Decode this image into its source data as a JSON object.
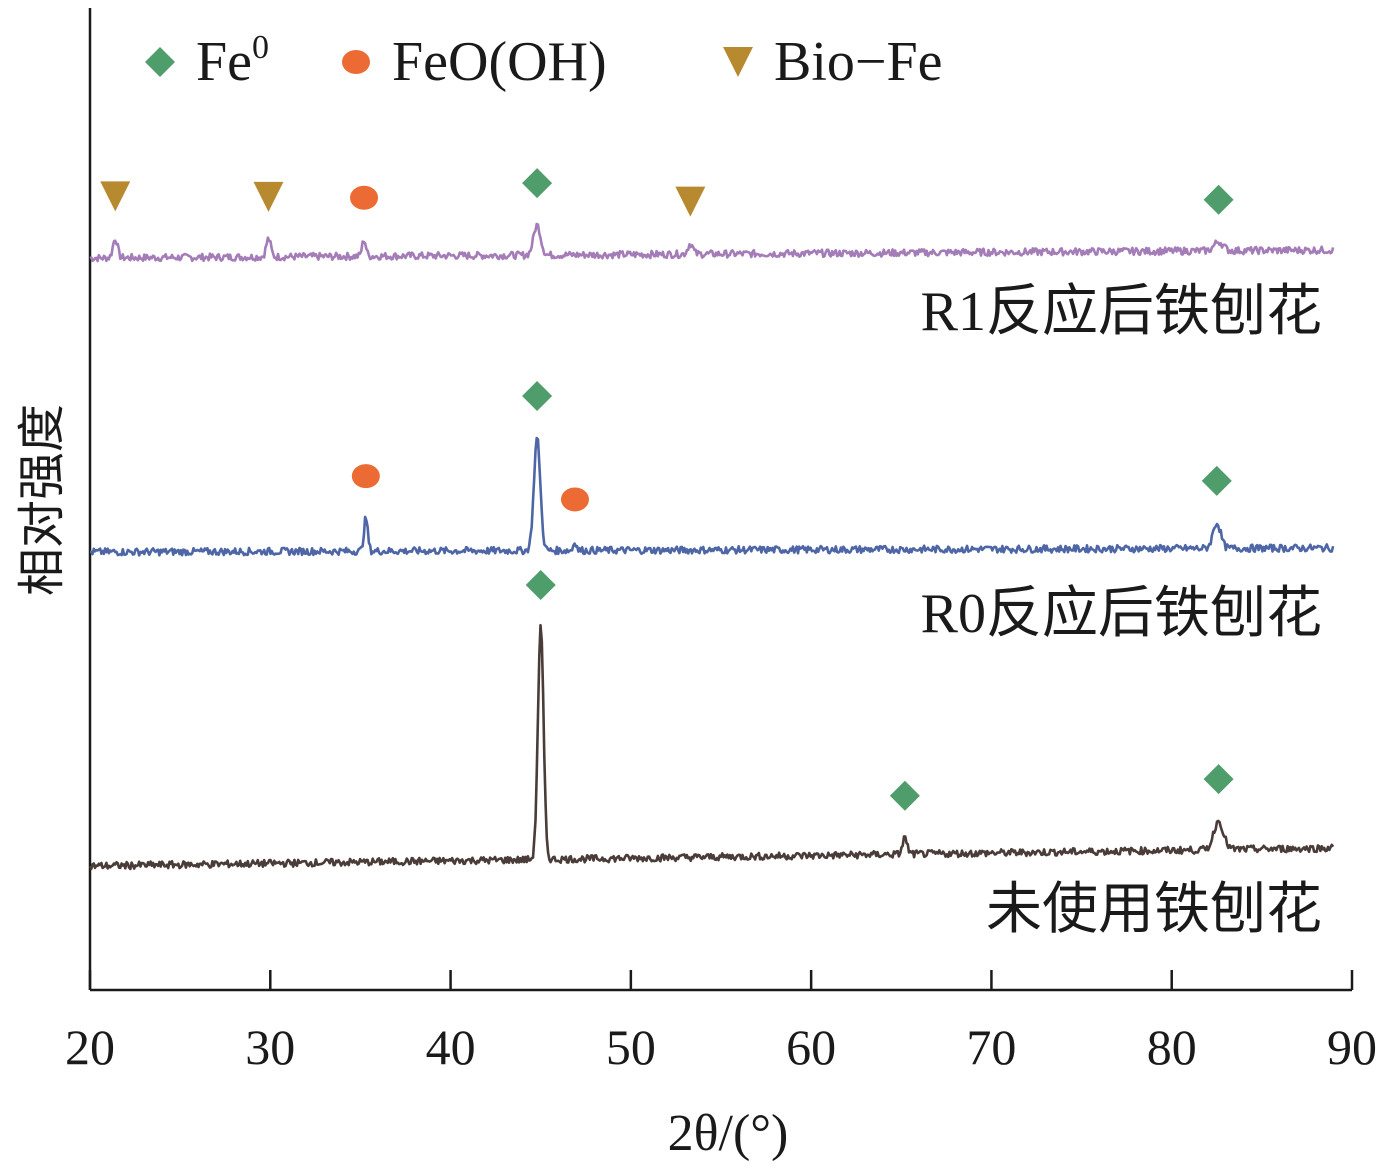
{
  "chart_data": {
    "type": "line",
    "xlabel": "2θ/(°)",
    "ylabel": "相对强度",
    "xlim": [
      20,
      90
    ],
    "x_ticks": [
      20,
      30,
      40,
      50,
      60,
      70,
      80,
      90
    ],
    "x_tick_labels": [
      "20",
      "30",
      "40",
      "50",
      "60",
      "70",
      "80",
      "90"
    ],
    "y_ticks_shown": false,
    "legend_position": "top",
    "legend": [
      {
        "name": "Fe",
        "superscript": "0",
        "marker": "diamond",
        "color": "#4f9d6b"
      },
      {
        "name": "FeO(OH)",
        "superscript": "",
        "marker": "circle",
        "color": "#ec6a34"
      },
      {
        "name": "Bio−Fe",
        "superscript": "",
        "marker": "triangle-down",
        "color": "#b88a30"
      }
    ],
    "series": [
      {
        "name": "R1反应后铁刨花",
        "color": "#a47cb8",
        "baseline": 0.0,
        "noise": 0.012,
        "peaks": [
          {
            "x": 21.4,
            "h": 0.13,
            "w": 0.18
          },
          {
            "x": 29.9,
            "h": 0.12,
            "w": 0.18
          },
          {
            "x": 35.2,
            "h": 0.11,
            "w": 0.15
          },
          {
            "x": 44.8,
            "h": 0.2,
            "w": 0.28
          },
          {
            "x": 53.3,
            "h": 0.07,
            "w": 0.2
          },
          {
            "x": 82.6,
            "h": 0.06,
            "w": 0.35
          }
        ],
        "markers": [
          {
            "x": 21.4,
            "type": "triangle-down"
          },
          {
            "x": 29.9,
            "type": "triangle-down"
          },
          {
            "x": 35.2,
            "type": "circle"
          },
          {
            "x": 44.8,
            "type": "diamond"
          },
          {
            "x": 53.3,
            "type": "triangle-down"
          },
          {
            "x": 82.6,
            "type": "diamond"
          }
        ]
      },
      {
        "name": "R0反应后铁刨花",
        "color": "#4e66a6",
        "baseline": 0.0,
        "noise": 0.012,
        "peaks": [
          {
            "x": 35.3,
            "h": 0.22,
            "w": 0.15
          },
          {
            "x": 44.8,
            "h": 0.75,
            "w": 0.25
          },
          {
            "x": 46.9,
            "h": 0.06,
            "w": 0.12
          },
          {
            "x": 82.5,
            "h": 0.17,
            "w": 0.3
          }
        ],
        "markers": [
          {
            "x": 35.3,
            "type": "circle"
          },
          {
            "x": 44.8,
            "type": "diamond"
          },
          {
            "x": 46.9,
            "type": "circle"
          },
          {
            "x": 82.5,
            "type": "diamond"
          }
        ]
      },
      {
        "name": "未使用铁刨花",
        "color": "#4a3c38",
        "baseline": 0.0,
        "noise": 0.012,
        "peaks": [
          {
            "x": 45.0,
            "h": 1.55,
            "w": 0.22
          },
          {
            "x": 65.2,
            "h": 0.11,
            "w": 0.18
          },
          {
            "x": 82.6,
            "h": 0.19,
            "w": 0.38
          }
        ],
        "markers": [
          {
            "x": 45.0,
            "type": "diamond"
          },
          {
            "x": 65.2,
            "type": "diamond"
          },
          {
            "x": 82.6,
            "type": "diamond"
          }
        ]
      }
    ]
  }
}
